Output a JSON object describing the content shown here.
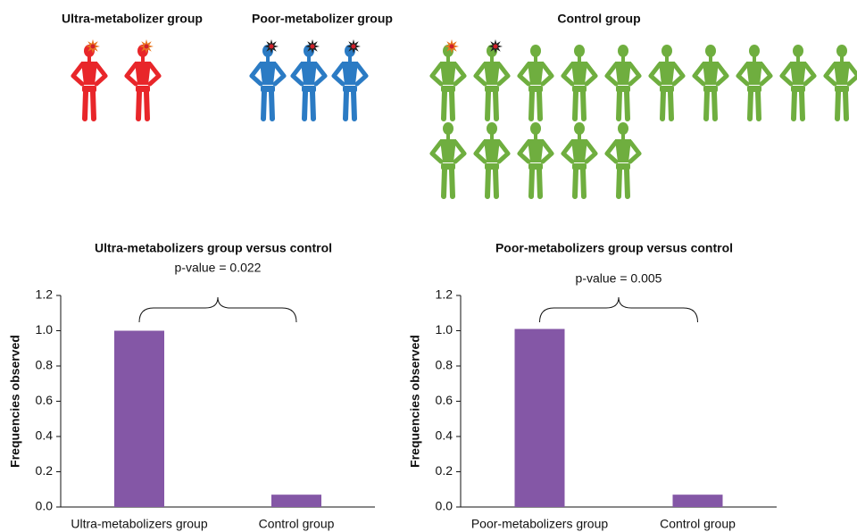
{
  "chart_data": [
    {
      "type": "pictogram",
      "series": [
        {
          "name": "Ultra-metabolizer group",
          "color": "#e8262a",
          "values": [
            2
          ]
        },
        {
          "name": "Poor-metabolizer group",
          "color": "#2b7bc4",
          "values": [
            3
          ]
        },
        {
          "name": "Control group",
          "color": "#6fae3f",
          "values": [
            15
          ]
        }
      ]
    },
    {
      "type": "bar",
      "title": "Ultra-metabolizers group versus control",
      "annotation": "p-value = 0.022",
      "ylabel": "Frequencies observed",
      "categories": [
        "Ultra-metabolizers group",
        "Control group"
      ],
      "values": [
        1.0,
        0.07
      ],
      "color": "#8457a6",
      "ylim": [
        0,
        1.2
      ],
      "yticks": [
        {
          "value": 0,
          "label": "0.0"
        },
        0.2,
        0.4,
        0.6,
        0.8,
        {
          "value": 1,
          "label": "1.0"
        },
        1.2
      ]
    },
    {
      "type": "bar",
      "title": "Poor-metabolizers group versus control",
      "annotation": "p-value = 0.005",
      "ylabel": "Frequencies observed",
      "categories": [
        "Poor-metabolizers group",
        "Control group"
      ],
      "values": [
        1.01,
        0.07
      ],
      "color": "#8457a6",
      "ylim": [
        0,
        1.2
      ],
      "yticks": [
        {
          "value": 0,
          "label": "0.0"
        },
        0.2,
        0.4,
        0.6,
        0.8,
        {
          "value": 1,
          "label": "1.0"
        },
        1.2
      ]
    }
  ]
}
